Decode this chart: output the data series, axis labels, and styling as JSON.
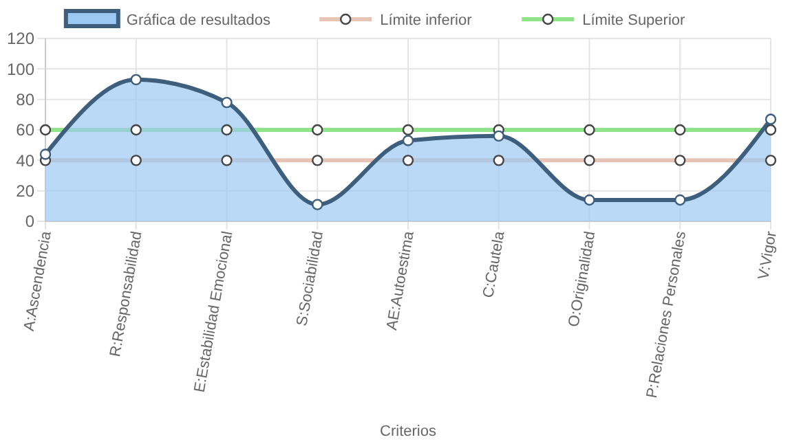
{
  "chart_data": {
    "type": "line",
    "xlabel": "Criterios",
    "categories": [
      "A:Ascendencia",
      "R:Responsabilidad",
      "E:Estabilidad Emocional",
      "S:Sociabilidad",
      "AE:Autoestima",
      "C:Cautela",
      "O:Originalidad",
      "P:Relaciones Personales",
      "V:Vigor"
    ],
    "series": [
      {
        "name": "Gráfica de resultados",
        "type": "area",
        "color": "#3d5e7c",
        "values": [
          44,
          93,
          78,
          11,
          53,
          56,
          14,
          14,
          67
        ]
      },
      {
        "name": "Límite inferior",
        "color": "#e6c4b6",
        "values": [
          40,
          40,
          40,
          40,
          40,
          40,
          40,
          40,
          40
        ]
      },
      {
        "name": "Límite Superior",
        "color": "#90e38a",
        "values": [
          60,
          60,
          60,
          60,
          60,
          60,
          60,
          60,
          60
        ]
      }
    ],
    "ylim": [
      0,
      120
    ],
    "yticks": [
      0,
      20,
      40,
      60,
      80,
      100,
      120
    ],
    "grid": true,
    "legend": "top",
    "marker": "circle",
    "line_style": "solid"
  }
}
